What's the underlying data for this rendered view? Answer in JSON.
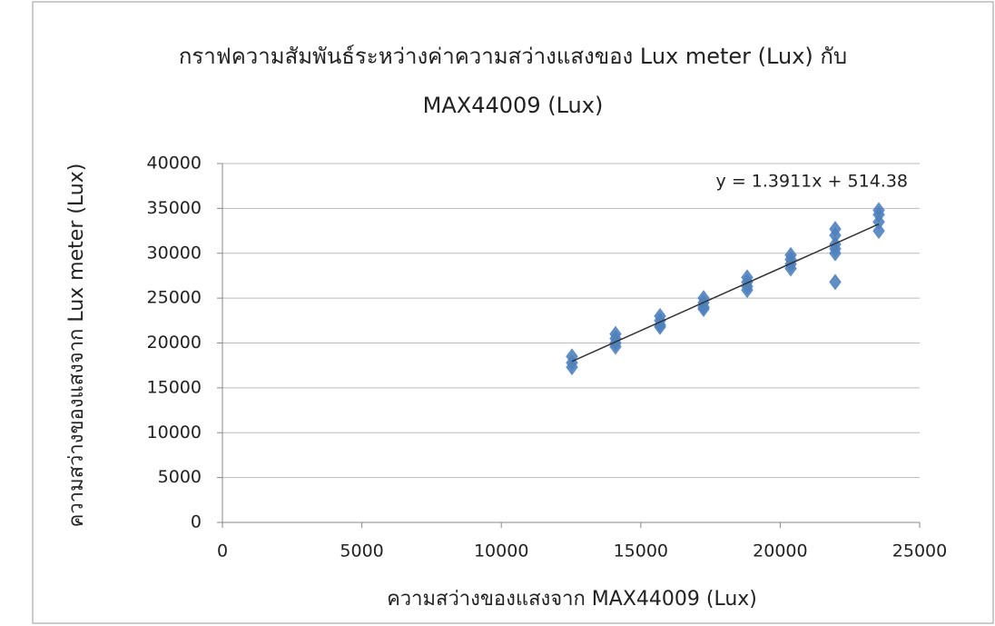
{
  "chart_data": {
    "type": "scatter",
    "title": [
      "กราฟความสัมพันธ์ระหว่างค่าความสว่างแสงของ Lux meter (Lux) กับ",
      "MAX44009 (Lux)"
    ],
    "x_label": "ความสว่างของแสงจาก MAX44009 (Lux)",
    "y_label": "ความสว่างของแสงจาก Lux  meter (Lux)",
    "series": [
      {
        "color": "#4f81bd",
        "x": [
          12533,
          12533,
          12533,
          14095,
          14095,
          14095,
          14095,
          15690,
          15690,
          15690,
          15690,
          17253,
          17253,
          17253,
          17253,
          18815,
          18815,
          18815,
          18815,
          20378,
          20378,
          20378,
          20378,
          21973,
          21973,
          21973,
          21973,
          21973,
          21973,
          23535,
          23535,
          23535,
          23535
        ],
        "values": [
          18500,
          17800,
          17300,
          21000,
          20500,
          20000,
          19600,
          23000,
          22500,
          22000,
          21800,
          25000,
          24500,
          24000,
          23800,
          27300,
          26800,
          26300,
          25900,
          29800,
          29300,
          28800,
          28300,
          32700,
          32000,
          31000,
          30500,
          30000,
          26800,
          34800,
          34300,
          33500,
          32500
        ]
      }
    ],
    "trendline": {
      "label": "y = 1.3911x + 514.38",
      "slope": 1.3911,
      "intercept": 514.38,
      "color": "#333333"
    },
    "xlim": [
      0,
      25000
    ],
    "xticks": [
      0,
      5000,
      10000,
      15000,
      20000,
      25000
    ],
    "ylim": [
      0,
      40000
    ],
    "yticks": [
      0,
      5000,
      10000,
      15000,
      20000,
      25000,
      30000,
      35000,
      40000
    ],
    "grid": true
  }
}
